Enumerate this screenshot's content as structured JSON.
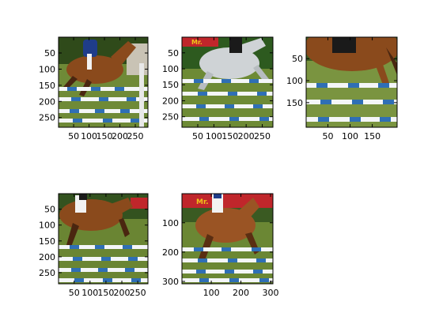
{
  "figure": {
    "background": "#ffffff",
    "layout": "2x3 subplot grid of images (5 used)"
  },
  "chart_data": [
    {
      "type": "image",
      "panel": 1,
      "content": "horse jumping over blue-white striped poles, rider visible",
      "xlim": [
        1,
        291
      ],
      "ylim": [
        1,
        280
      ],
      "x_ticks": [
        50,
        100,
        150,
        200,
        250
      ],
      "y_ticks": [
        50,
        100,
        150,
        200,
        250
      ],
      "x_tick_labels": [
        "50",
        "100",
        "150",
        "200",
        "250"
      ],
      "y_tick_labels": [
        "50",
        "100",
        "150",
        "200",
        "250"
      ]
    },
    {
      "type": "image",
      "panel": 2,
      "content": "grey horse over blue-white striped poles, red banner text",
      "xlim": [
        1,
        283
      ],
      "ylim": [
        1,
        283
      ],
      "x_ticks": [
        50,
        100,
        150,
        200,
        250
      ],
      "y_ticks": [
        50,
        100,
        150,
        200,
        250
      ],
      "x_tick_labels": [
        "50",
        "100",
        "150",
        "200",
        "250"
      ],
      "y_tick_labels": [
        "50",
        "100",
        "150",
        "200",
        "250"
      ],
      "banner_text": "Mr."
    },
    {
      "type": "image",
      "panel": 3,
      "content": "close-up of horse legs over blue-white striped poles",
      "xlim": [
        1,
        206
      ],
      "ylim": [
        1,
        206
      ],
      "x_ticks": [
        50,
        100,
        150
      ],
      "y_ticks": [
        50,
        100,
        150
      ],
      "x_tick_labels": [
        "50",
        "100",
        "150"
      ],
      "y_tick_labels": [
        "50",
        "100",
        "150"
      ]
    },
    {
      "type": "image",
      "panel": 4,
      "content": "bay horse with rider jumping blue-white striped poles",
      "xlim": [
        1,
        282
      ],
      "ylim": [
        1,
        285
      ],
      "x_ticks": [
        50,
        100,
        150,
        200,
        250
      ],
      "y_ticks": [
        50,
        100,
        150,
        200,
        250
      ],
      "x_tick_labels": [
        "50",
        "100",
        "150",
        "200",
        "250"
      ],
      "y_tick_labels": [
        "50",
        "100",
        "150",
        "200",
        "250"
      ]
    },
    {
      "type": "image",
      "panel": 5,
      "content": "chestnut horse with rider over blue-white striped poles, red banner",
      "xlim": [
        1,
        308
      ],
      "ylim": [
        1,
        308
      ],
      "x_ticks": [
        100,
        200,
        300
      ],
      "y_ticks": [
        100,
        200,
        300
      ],
      "x_tick_labels": [
        "100",
        "200",
        "300"
      ],
      "y_tick_labels": [
        "100",
        "200",
        "300"
      ],
      "banner_text": "Mr."
    }
  ],
  "colors": {
    "grass": "#5f7a2f",
    "grass_dark": "#3f5a1e",
    "sky_tree": "#2f4a1a",
    "horse_bay": "#8a4a1c",
    "horse_dark": "#4a2610",
    "horse_grey": "#cfd3d6",
    "pole_blue": "#2f6fb5",
    "pole_white": "#f4f6f8",
    "banner_red": "#c0262b",
    "banner_yellow": "#f0c419",
    "rider_blue": "#1f3d8a",
    "rider_white": "#f2f2f2"
  }
}
